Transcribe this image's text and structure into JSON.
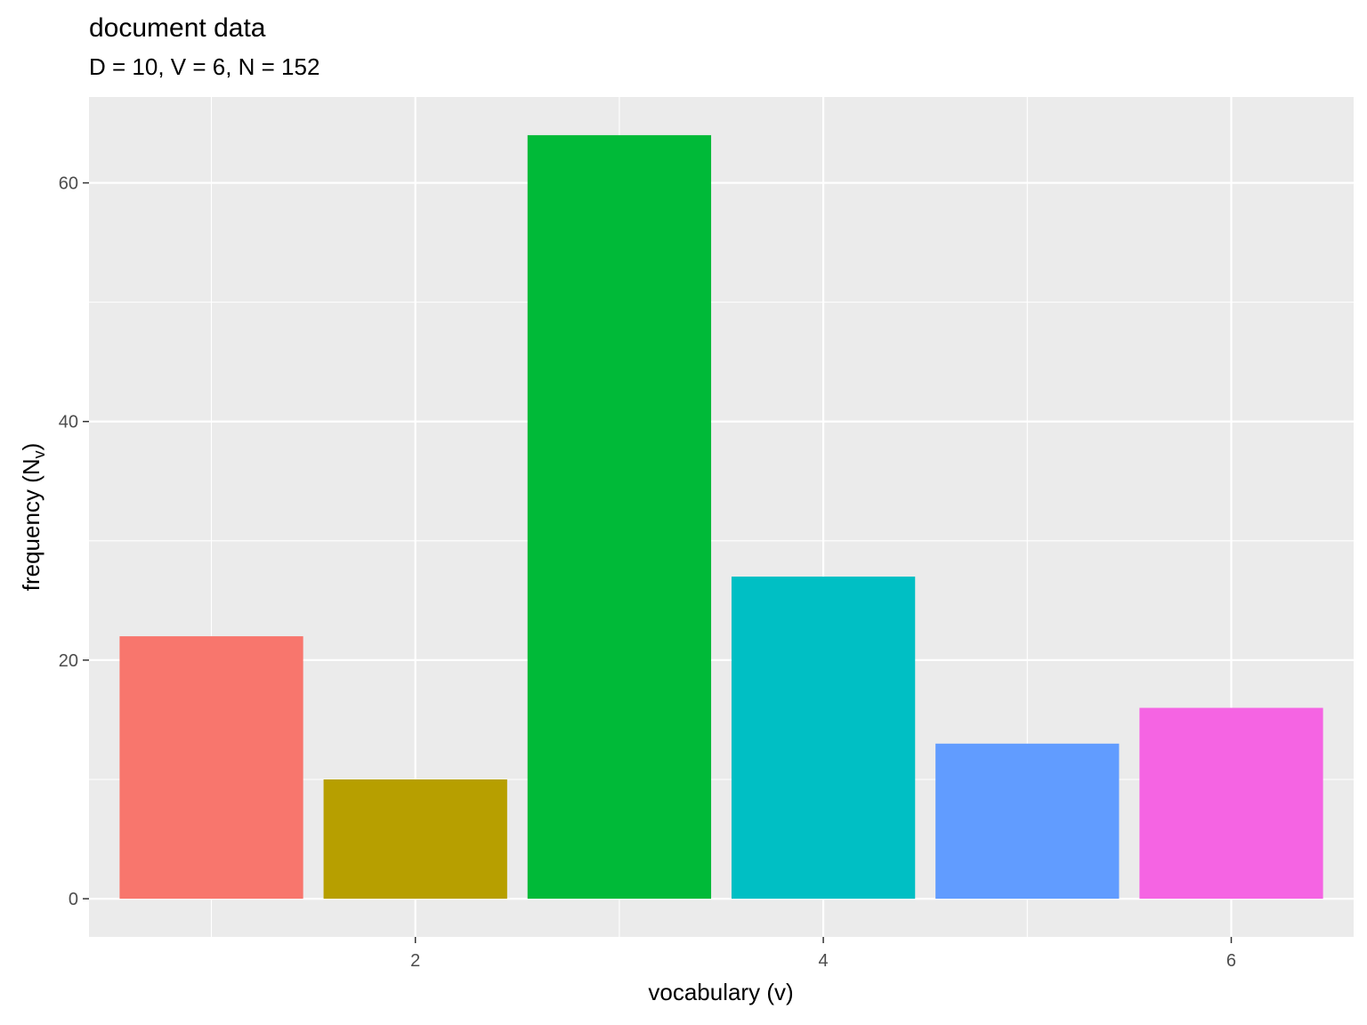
{
  "chart_data": {
    "type": "bar",
    "title": "document data",
    "subtitle": "D = 10, V = 6, N = 152",
    "xlabel": "vocabulary (v)",
    "ylabel_main": "frequency (N",
    "ylabel_sub": "v",
    "ylabel_close": ")",
    "categories": [
      1,
      2,
      3,
      4,
      5,
      6
    ],
    "values": [
      22,
      10,
      64,
      27,
      13,
      16
    ],
    "colors": [
      "#F8766D",
      "#B79F00",
      "#00BA38",
      "#00BFC4",
      "#619CFF",
      "#F564E3"
    ],
    "xticks": [
      2,
      4,
      6
    ],
    "yticks": [
      0,
      20,
      40,
      60
    ],
    "xlim": [
      0.4,
      6.6
    ],
    "ylim": [
      -3.2,
      67.2
    ],
    "grid": true,
    "legend": "none",
    "panel_background": "#EBEBEB",
    "grid_color": "#FFFFFF"
  }
}
